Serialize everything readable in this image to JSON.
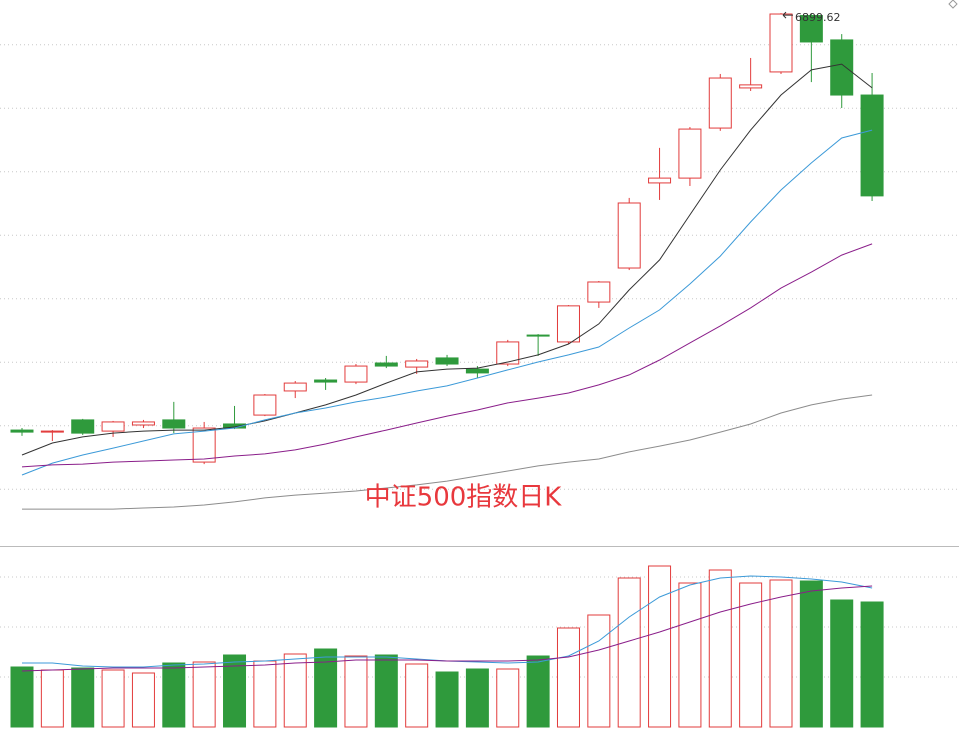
{
  "chart_data": [
    {
      "type": "candlestick",
      "title": "中证500指数日K",
      "categories": [
        null,
        null,
        null,
        null,
        null,
        null,
        null,
        null,
        null,
        null,
        null,
        null,
        null,
        null,
        null,
        null,
        null,
        null,
        null,
        null,
        null,
        null,
        null,
        null,
        null,
        null,
        null,
        null,
        null
      ],
      "open": [
        5258,
        5250,
        5298,
        5254,
        5278,
        5298,
        5132,
        5282,
        5317,
        5412,
        5455,
        5447,
        5522,
        5506,
        5542,
        5498,
        5518,
        5632,
        5605,
        5762,
        5896,
        6231,
        6250,
        6447,
        6605,
        6668,
        6890,
        6794,
        6577
      ],
      "high": [
        5266,
        5258,
        5302,
        5294,
        5298,
        5369,
        5290,
        5353,
        5400,
        5451,
        5463,
        5518,
        5550,
        5538,
        5554,
        5510,
        5613,
        5636,
        5750,
        5845,
        6172,
        6369,
        6451,
        6660,
        6723,
        6899.62,
        6896,
        6817,
        6664
      ],
      "low": [
        5235,
        5215,
        5239,
        5231,
        5266,
        5246,
        5124,
        5262,
        5313,
        5384,
        5416,
        5439,
        5502,
        5479,
        5510,
        5463,
        5510,
        5550,
        5598,
        5739,
        5888,
        6164,
        6219,
        6436,
        6593,
        6660,
        6628,
        6526,
        6160
      ],
      "close": [
        5250,
        5254,
        5246,
        5290,
        5290,
        5266,
        5266,
        5266,
        5396,
        5443,
        5447,
        5510,
        5510,
        5530,
        5518,
        5483,
        5605,
        5628,
        5747,
        5841,
        6152,
        6250,
        6443,
        6644,
        6617,
        6896,
        6786,
        6577,
        6180
      ],
      "up_color": "#e23b3b",
      "down_color": "#2f9a3c",
      "series": [
        {
          "color": "#333333",
          "values": [
            5160,
            5207,
            5231,
            5246,
            5254,
            5258,
            5258,
            5270,
            5294,
            5325,
            5357,
            5396,
            5443,
            5487,
            5498,
            5502,
            5526,
            5554,
            5597,
            5676,
            5810,
            5928,
            6105,
            6282,
            6439,
            6577,
            6676,
            6699,
            6605
          ]
        },
        {
          "color": "#3c9ad8",
          "values": [
            5081,
            5128,
            5160,
            5187,
            5215,
            5243,
            5254,
            5266,
            5298,
            5325,
            5345,
            5369,
            5388,
            5412,
            5432,
            5463,
            5495,
            5526,
            5554,
            5585,
            5660,
            5731,
            5833,
            5943,
            6077,
            6203,
            6310,
            6408,
            6439
          ]
        },
        {
          "color": "#8a1e8a",
          "values": [
            5113,
            5121,
            5124,
            5132,
            5136,
            5140,
            5144,
            5156,
            5164,
            5180,
            5203,
            5231,
            5258,
            5286,
            5313,
            5337,
            5365,
            5384,
            5404,
            5436,
            5475,
            5534,
            5601,
            5668,
            5739,
            5817,
            5880,
            5947,
            5991
          ]
        },
        {
          "color": "#8c8c8c",
          "values": [
            4947,
            4947,
            4947,
            4947,
            4951,
            4955,
            4963,
            4975,
            4991,
            5002,
            5010,
            5018,
            5030,
            5042,
            5057,
            5077,
            5097,
            5117,
            5132,
            5144,
            5172,
            5195,
            5219,
            5250,
            5282,
            5325,
            5357,
            5380,
            5396
          ]
        }
      ],
      "ylim": [
        4800,
        6950
      ],
      "yticks": [
        5025,
        5275,
        5525,
        5775,
        6025,
        6275,
        6525,
        6775
      ],
      "grid": true
    },
    {
      "type": "bar",
      "values": [
        60,
        57,
        59,
        57,
        54,
        64,
        65,
        72,
        66,
        73,
        78,
        71,
        72,
        63,
        55,
        58,
        58,
        71,
        99,
        112,
        149,
        161,
        144,
        157,
        144,
        147,
        146,
        127,
        125
      ],
      "series": [
        {
          "color": "#3c9ad8",
          "values": [
            64,
            64,
            61,
            60,
            60,
            62,
            63,
            65,
            66,
            68,
            70,
            70,
            70,
            68,
            66,
            65,
            64,
            65,
            71,
            86,
            110,
            130,
            142,
            149,
            151,
            150,
            148,
            145,
            139
          ]
        },
        {
          "color": "#8a1e8a",
          "values": [
            56,
            57,
            58,
            59,
            59,
            59,
            60,
            61,
            62,
            64,
            65,
            67,
            67,
            67,
            66,
            66,
            66,
            67,
            70,
            77,
            86,
            95,
            105,
            115,
            123,
            130,
            136,
            139,
            141
          ]
        }
      ],
      "ylim": [
        0,
        180
      ],
      "yticks": [
        50,
        100,
        150
      ],
      "grid": true
    }
  ]
}
